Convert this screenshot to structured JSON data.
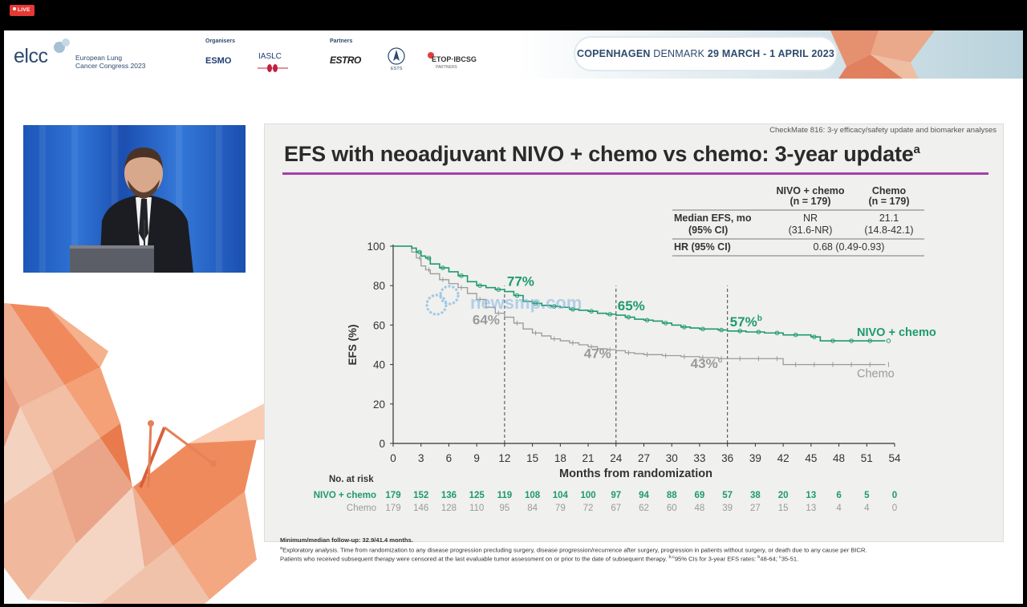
{
  "live_badge": "LIVE",
  "header": {
    "logo": "elcc",
    "congress_line1": "European Lung",
    "congress_line2": "Cancer Congress 2023",
    "organisers_label": "Organisers",
    "partners_label": "Partners",
    "org_logos": [
      "ESMO",
      "IASLC"
    ],
    "partner_logos": [
      "ESTRO",
      "ESTS",
      "ETOP·IBCSG",
      "PARTNERS"
    ],
    "location_city": "COPENHAGEN",
    "location_country": "DENMARK",
    "location_dates": "29 MARCH - 1 APRIL 2023"
  },
  "slide": {
    "top_right": "CheckMate 816: 3-y efficacy/safety update and biomarker analyses",
    "title": "EFS with neoadjuvant NIVO + chemo vs chemo: 3-year update",
    "title_sup": "a",
    "table": {
      "col1_head1": "NIVO + chemo",
      "col1_head2": "(n = 179)",
      "col2_head1": "Chemo",
      "col2_head2": "(n = 179)",
      "row1_label1": "Median EFS, mo",
      "row1_label2": "(95% CI)",
      "row1_nivo1": "NR",
      "row1_nivo2": "(31.6-NR)",
      "row1_chemo1": "21.1",
      "row1_chemo2": "(14.8-42.1)",
      "row2_label": "HR (95% CI)",
      "row2_value": "0.68 (0.49-0.93)"
    },
    "footnote_bold": "Minimum/median follow-up: 32.9/41.4 months.",
    "footnote_a": "Exploratory analysis. Time from randomization to any disease progression precluding surgery, disease progression/recurrence after surgery, progression in patients without surgery, or death due to any cause per BICR.",
    "footnote_b": "Patients who received subsequent therapy were censored at the last evaluable tumor assessment on or prior to the date of subsequent therapy.",
    "footnote_bc": "95% CIs for 3-year EFS rates: ",
    "footnote_b_ci": "48-64; ",
    "footnote_c_ci": "35-51.",
    "sup_a": "a",
    "sup_b": "b",
    "sup_c": "c",
    "sup_bc": "b,c",
    "watermark": "newsmp.com"
  },
  "chart_data": {
    "type": "line",
    "xlabel": "Months from randomization",
    "ylabel": "EFS (%)",
    "xlim": [
      0,
      54
    ],
    "ylim": [
      0,
      100
    ],
    "xticks": [
      0,
      3,
      6,
      9,
      12,
      15,
      18,
      21,
      24,
      27,
      30,
      33,
      36,
      39,
      42,
      45,
      48,
      51,
      54
    ],
    "yticks": [
      0,
      20,
      40,
      60,
      80,
      100
    ],
    "reference_lines_x": [
      12,
      24,
      36
    ],
    "series": [
      {
        "name": "NIVO + chemo",
        "color": "#1e9a6e",
        "x": [
          0,
          2,
          2.5,
          3,
          3.5,
          4,
          5,
          6,
          7,
          8,
          9,
          10,
          11,
          12,
          13,
          14,
          15,
          16,
          17,
          18,
          19,
          20,
          21,
          22,
          23,
          24,
          25,
          26,
          27,
          28,
          29,
          30,
          31,
          32,
          33,
          34,
          35,
          36,
          37,
          38,
          39,
          40,
          41,
          42,
          43,
          44,
          45,
          46,
          47,
          48,
          49,
          50,
          51,
          52,
          53
        ],
        "y": [
          100,
          99,
          97,
          95,
          94,
          91,
          89,
          87,
          85,
          82,
          80,
          79,
          78,
          77,
          75,
          72,
          71,
          70,
          69.5,
          69,
          68,
          67.5,
          67,
          66,
          65.5,
          65,
          64,
          63,
          62.5,
          62,
          61,
          60,
          59,
          58.5,
          58,
          58,
          57.5,
          57,
          57,
          56.5,
          56.5,
          56,
          56,
          55,
          55,
          55,
          54,
          52,
          52,
          52,
          52,
          52,
          52,
          52,
          52
        ],
        "end_label": "NIVO + chemo",
        "annotations": [
          {
            "x": 12,
            "y": 77,
            "label": "77%"
          },
          {
            "x": 24,
            "y": 65,
            "label": "65%"
          },
          {
            "x": 36,
            "y": 57,
            "label": "57%",
            "sup": "b"
          }
        ],
        "at_risk": [
          179,
          152,
          136,
          125,
          119,
          108,
          104,
          100,
          97,
          94,
          88,
          69,
          57,
          38,
          20,
          13,
          6,
          5,
          0
        ]
      },
      {
        "name": "Chemo",
        "color": "#9a9a9a",
        "x": [
          0,
          2,
          2.5,
          3,
          3.5,
          4,
          5,
          6,
          7,
          8,
          9,
          10,
          11,
          12,
          13,
          14,
          15,
          16,
          17,
          18,
          19,
          20,
          21,
          22,
          23,
          24,
          25,
          26,
          27,
          28,
          29,
          30,
          31,
          32,
          33,
          34,
          35,
          36,
          37,
          38,
          39,
          40,
          41,
          42,
          43,
          44,
          45,
          46,
          47,
          48,
          49,
          50,
          51,
          52,
          53
        ],
        "y": [
          100,
          97,
          94,
          90,
          88,
          86,
          83,
          81,
          79,
          76,
          73,
          69,
          66,
          64,
          61,
          58,
          56,
          54.5,
          53,
          52,
          51,
          50,
          49,
          48,
          47.5,
          47,
          46,
          45.5,
          45,
          45,
          44.5,
          44.5,
          44,
          44,
          43.5,
          43.5,
          43,
          43,
          43,
          43,
          43,
          43,
          43,
          40,
          40,
          40,
          40,
          40,
          40,
          40,
          40,
          40,
          40,
          40,
          40
        ],
        "end_label": "Chemo",
        "annotations": [
          {
            "x": 12,
            "y": 64,
            "label": "64%"
          },
          {
            "x": 24,
            "y": 47,
            "label": "47%"
          },
          {
            "x": 36,
            "y": 43,
            "label": "43%",
            "sup": "c"
          }
        ],
        "at_risk": [
          179,
          146,
          128,
          110,
          95,
          84,
          79,
          72,
          67,
          62,
          60,
          48,
          39,
          27,
          15,
          13,
          4,
          4,
          0
        ]
      }
    ],
    "at_risk_title": "No. at risk",
    "at_risk_labels": [
      "NIVO + chemo",
      "Chemo"
    ]
  }
}
